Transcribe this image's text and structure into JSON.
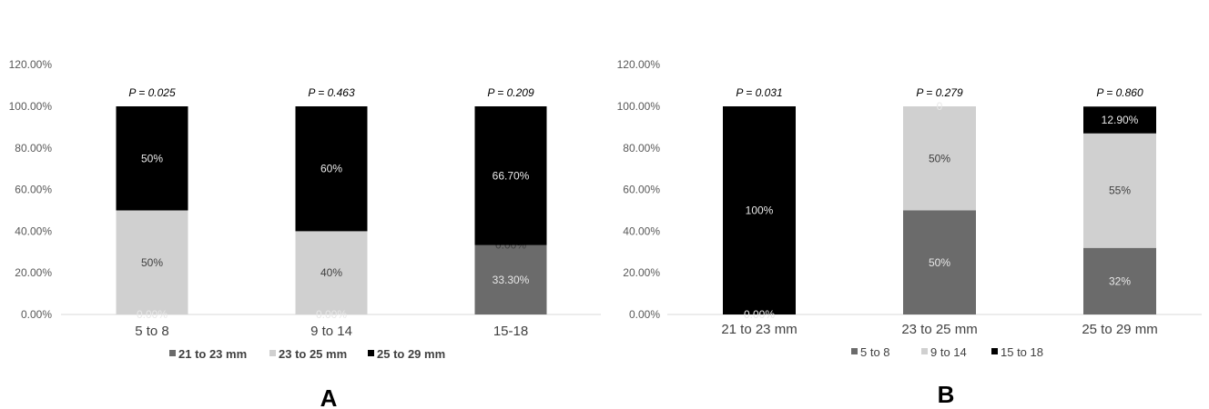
{
  "chart_data": [
    {
      "type": "bar",
      "stacked": true,
      "panel_label": "A",
      "categories": [
        "5 to 8",
        "9 to 14",
        "15-18"
      ],
      "ylim": [
        0,
        120
      ],
      "yticks": [
        "0.00%",
        "20.00%",
        "40.00%",
        "60.00%",
        "80.00%",
        "100.00%",
        "120.00%"
      ],
      "grid": false,
      "legend_position": "bottom",
      "series": [
        {
          "name": "21 to 23 mm",
          "color": "#6b6b6b",
          "values": [
            0,
            0,
            33.3
          ],
          "labels": [
            "",
            "",
            "33.30%"
          ],
          "label_color": "#e8e8e8"
        },
        {
          "name": "23 to 25 mm",
          "color": "#d0d0d0",
          "values": [
            50,
            40,
            0
          ],
          "labels": [
            "50%",
            "40%",
            "0.00%"
          ],
          "label_color": "#404040"
        },
        {
          "name": "25 to 29 mm",
          "color": "#000000",
          "values": [
            50,
            60,
            66.7
          ],
          "labels": [
            "50%",
            "60%",
            "66.70%"
          ],
          "label_color": "#e8e8e8"
        }
      ],
      "zero_labels": [
        "0.00%",
        "0.00%",
        ""
      ],
      "p_values": [
        "P = 0.025",
        "P = 0.463",
        "P = 0.209"
      ]
    },
    {
      "type": "bar",
      "stacked": true,
      "panel_label": "B",
      "categories": [
        "21 to 23 mm",
        "23 to 25 mm",
        "25 to 29 mm"
      ],
      "ylim": [
        0,
        120
      ],
      "yticks": [
        "0.00%",
        "20.00%",
        "40.00%",
        "60.00%",
        "80.00%",
        "100.00%",
        "120.00%"
      ],
      "grid": false,
      "legend_position": "bottom",
      "series": [
        {
          "name": "5 to 8",
          "color": "#6b6b6b",
          "values": [
            0,
            50,
            32
          ],
          "labels": [
            "",
            "50%",
            "32%"
          ],
          "label_color": "#e8e8e8"
        },
        {
          "name": "9 to 14",
          "color": "#d0d0d0",
          "values": [
            0,
            50,
            55
          ],
          "labels": [
            "",
            "50%",
            "55%"
          ],
          "label_color": "#404040"
        },
        {
          "name": "15 to 18",
          "color": "#000000",
          "values": [
            100,
            0,
            12.9
          ],
          "labels": [
            "100%",
            "0",
            "12.90%"
          ],
          "label_color": "#e8e8e8"
        }
      ],
      "zero_labels": [
        "0.00%",
        "",
        ""
      ],
      "p_values": [
        "P = 0.031",
        "P = 0.279",
        "P = 0.860"
      ]
    }
  ]
}
